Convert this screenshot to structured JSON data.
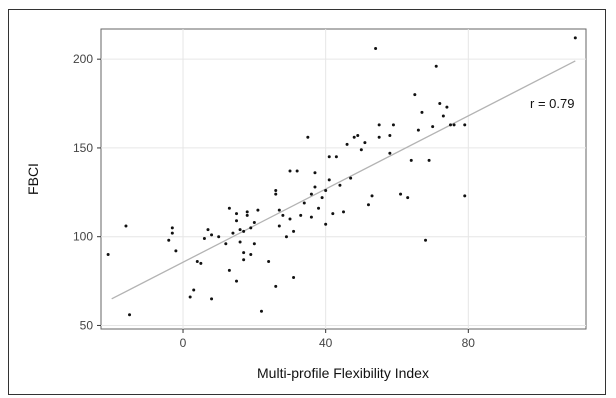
{
  "chart_data": {
    "type": "scatter",
    "title": "",
    "xlabel": "Multi-profile Flexibility Index",
    "ylabel": "FBCI",
    "xlim": [
      -23,
      113
    ],
    "ylim": [
      48,
      217
    ],
    "x_ticks": [
      0,
      40,
      80
    ],
    "y_ticks": [
      50,
      100,
      150,
      200
    ],
    "grid": true,
    "legend": "none",
    "annotation": "r = 0.79",
    "colors": {
      "point": "#111111",
      "fit_line": "#b3b3b3",
      "grid": "#e6e6e6",
      "panel_border": "#666666"
    },
    "fit_line": {
      "x": [
        -20,
        110
      ],
      "y": [
        65,
        199
      ]
    },
    "points": {
      "x": [
        -21,
        -16,
        -15,
        -4,
        -3,
        -3,
        -2,
        2,
        3,
        4,
        5,
        6,
        7,
        8,
        8,
        10,
        12,
        13,
        13,
        14,
        15,
        15,
        15,
        16,
        16,
        17,
        17,
        17,
        18,
        18,
        19,
        19,
        20,
        20,
        21,
        22,
        24,
        26,
        26,
        26,
        27,
        27,
        28,
        29,
        30,
        30,
        31,
        31,
        32,
        33,
        34,
        35,
        36,
        36,
        37,
        37,
        38,
        39,
        40,
        40,
        41,
        41,
        42,
        43,
        44,
        45,
        46,
        47,
        48,
        49,
        50,
        51,
        52,
        53,
        54,
        55,
        55,
        58,
        58,
        59,
        61,
        63,
        64,
        65,
        66,
        67,
        68,
        69,
        70,
        71,
        72,
        73,
        74,
        75,
        76,
        79,
        79,
        110
      ],
      "y": [
        90,
        106,
        56,
        98,
        105,
        102,
        92,
        66,
        70,
        86,
        85,
        99,
        104,
        101,
        65,
        100,
        96,
        81,
        116,
        102,
        75,
        109,
        113,
        97,
        104,
        91,
        87,
        103,
        112,
        114,
        105,
        90,
        108,
        96,
        115,
        58,
        86,
        72,
        124,
        126,
        106,
        115,
        112,
        100,
        110,
        137,
        103,
        77,
        137,
        112,
        119,
        156,
        124,
        111,
        128,
        136,
        116,
        122,
        126,
        107,
        145,
        132,
        113,
        145,
        129,
        114,
        152,
        133,
        156,
        157,
        149,
        153,
        118,
        123,
        206,
        156,
        163,
        147,
        157,
        163,
        124,
        122,
        143,
        180,
        160,
        170,
        98,
        143,
        162,
        196,
        175,
        168,
        173,
        163,
        163,
        123,
        163,
        212
      ]
    }
  }
}
